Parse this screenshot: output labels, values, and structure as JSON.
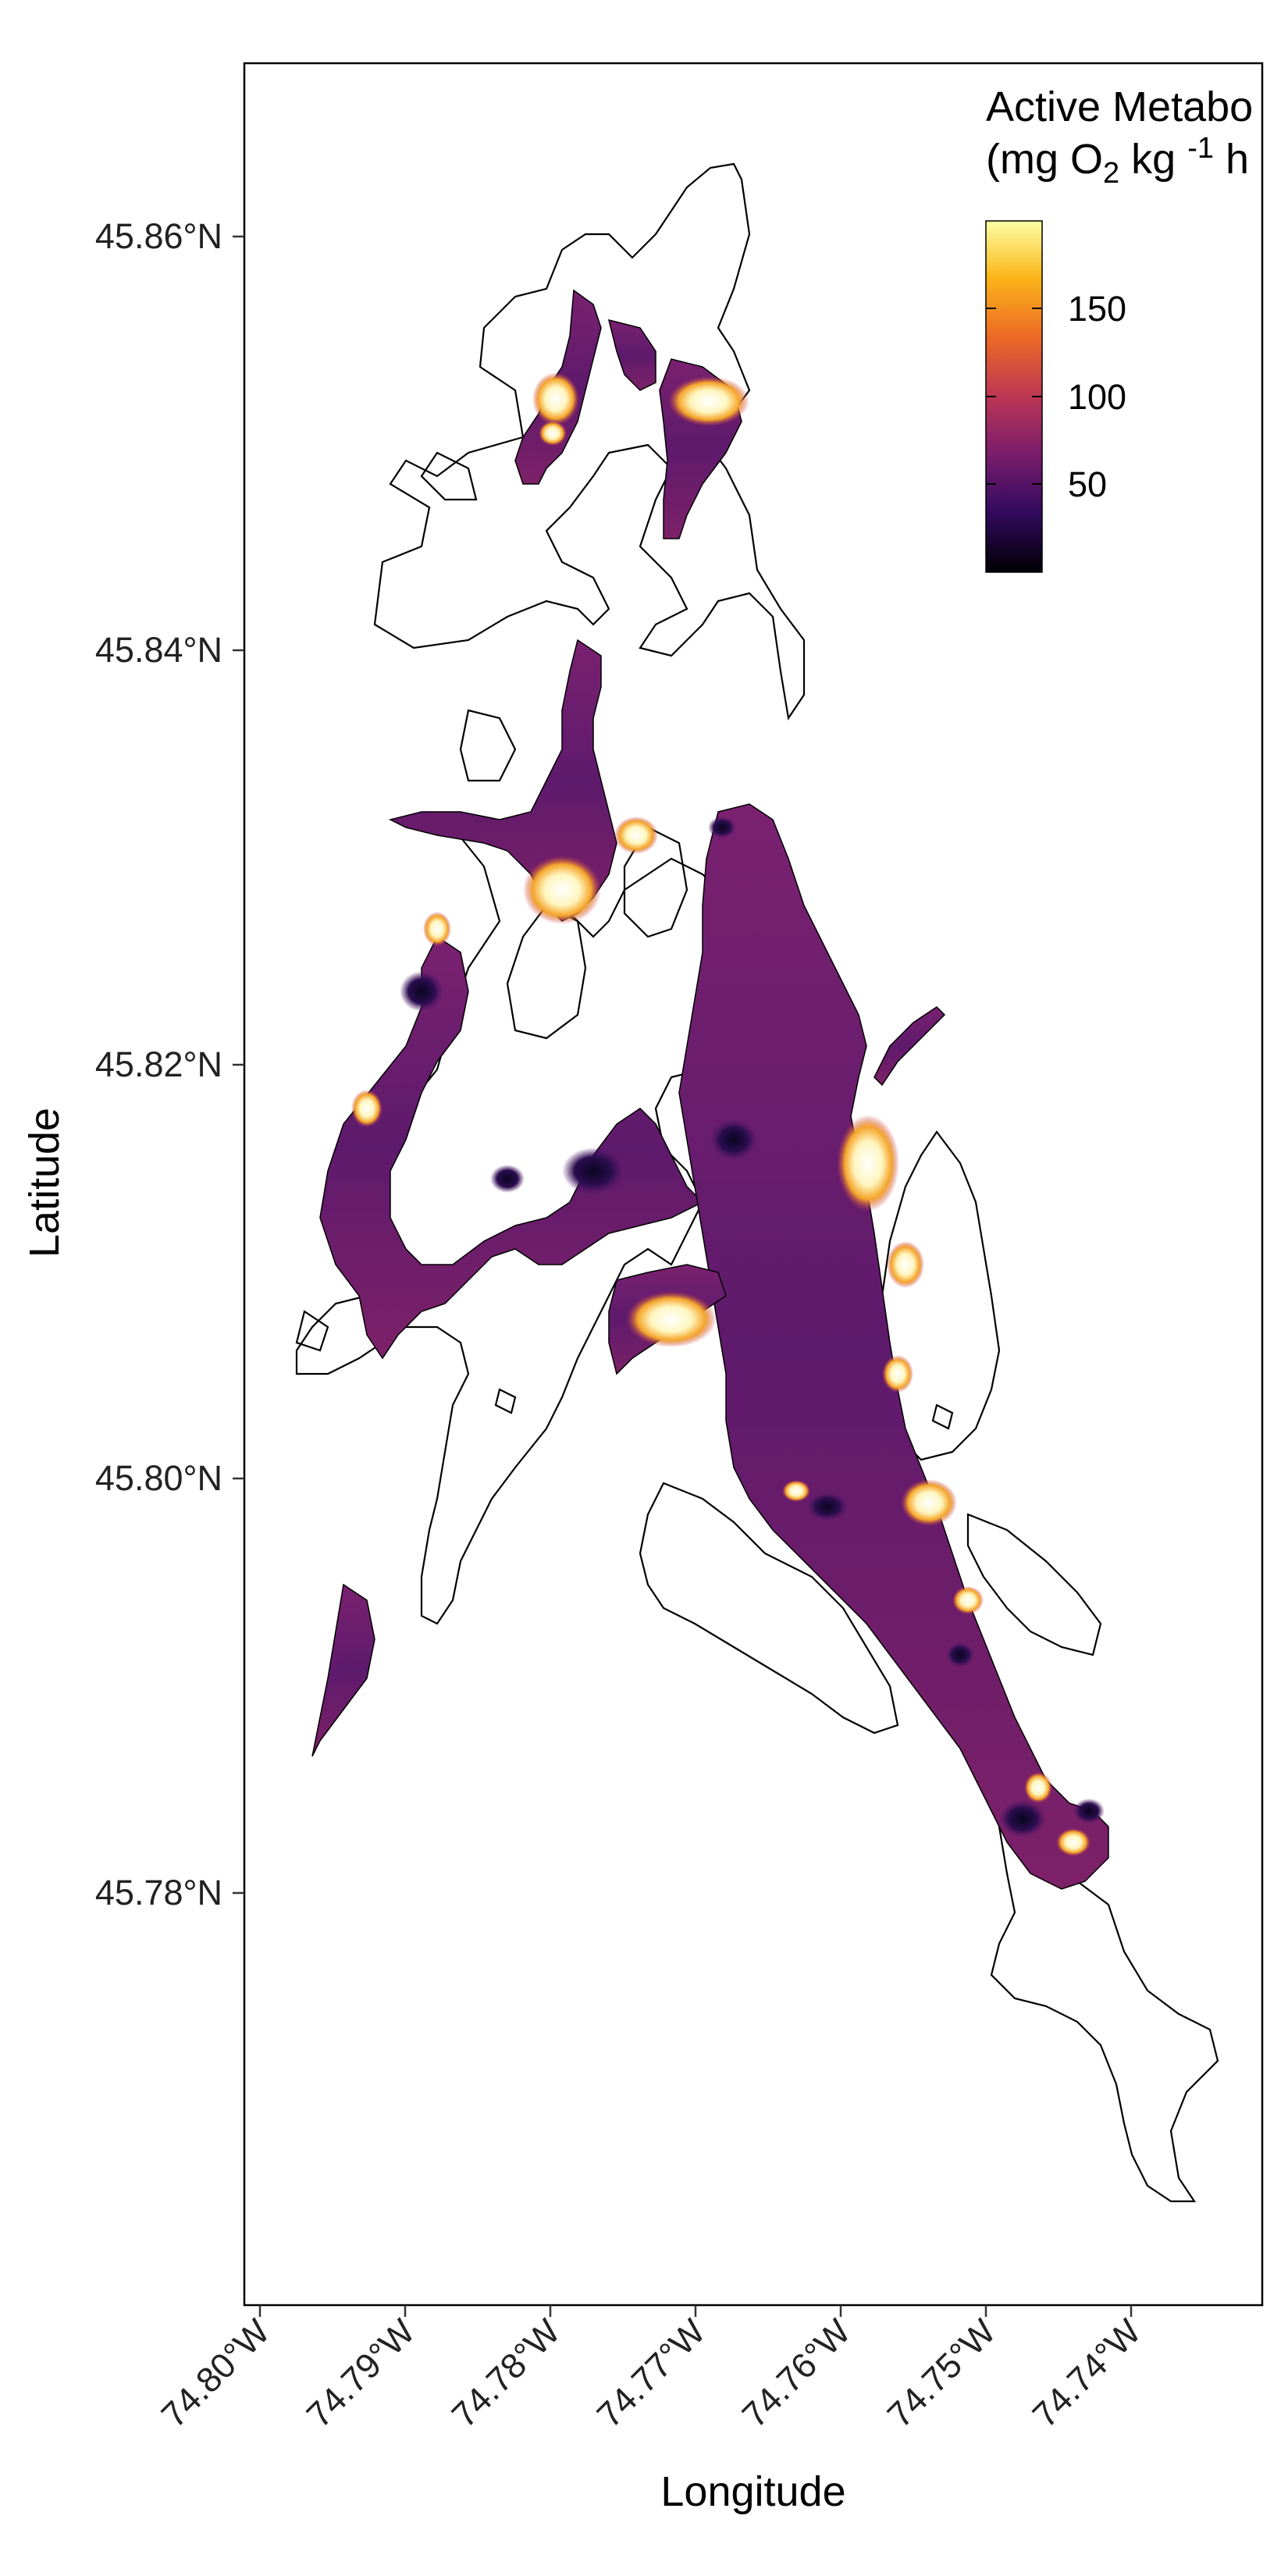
{
  "axes": {
    "x_title": "Longitude",
    "y_title": "Latitude",
    "x_ticks": [
      "74.80°W",
      "74.79°W",
      "74.78°W",
      "74.77°W",
      "74.76°W",
      "74.75°W",
      "74.74°W"
    ],
    "y_ticks": [
      "45.86°N",
      "45.84°N",
      "45.82°N",
      "45.80°N",
      "45.78°N"
    ]
  },
  "legend": {
    "title_line1": "Active Metabo",
    "title_line2_prefix": "(mg O",
    "title_line2_sub": "2",
    "title_line2_mid": " kg ",
    "title_line2_sup": "-1",
    "title_line2_suffix": " h",
    "ticks": [
      "150",
      "100",
      "50"
    ],
    "colors": [
      "#000004",
      "#320a5e",
      "#781c6d",
      "#bc3754",
      "#ed6925",
      "#fbb61a",
      "#fcffa4"
    ]
  },
  "colors": {
    "outline": "#000000",
    "water_base": "#6b1f6e",
    "hotspot": "#ffffff"
  }
}
